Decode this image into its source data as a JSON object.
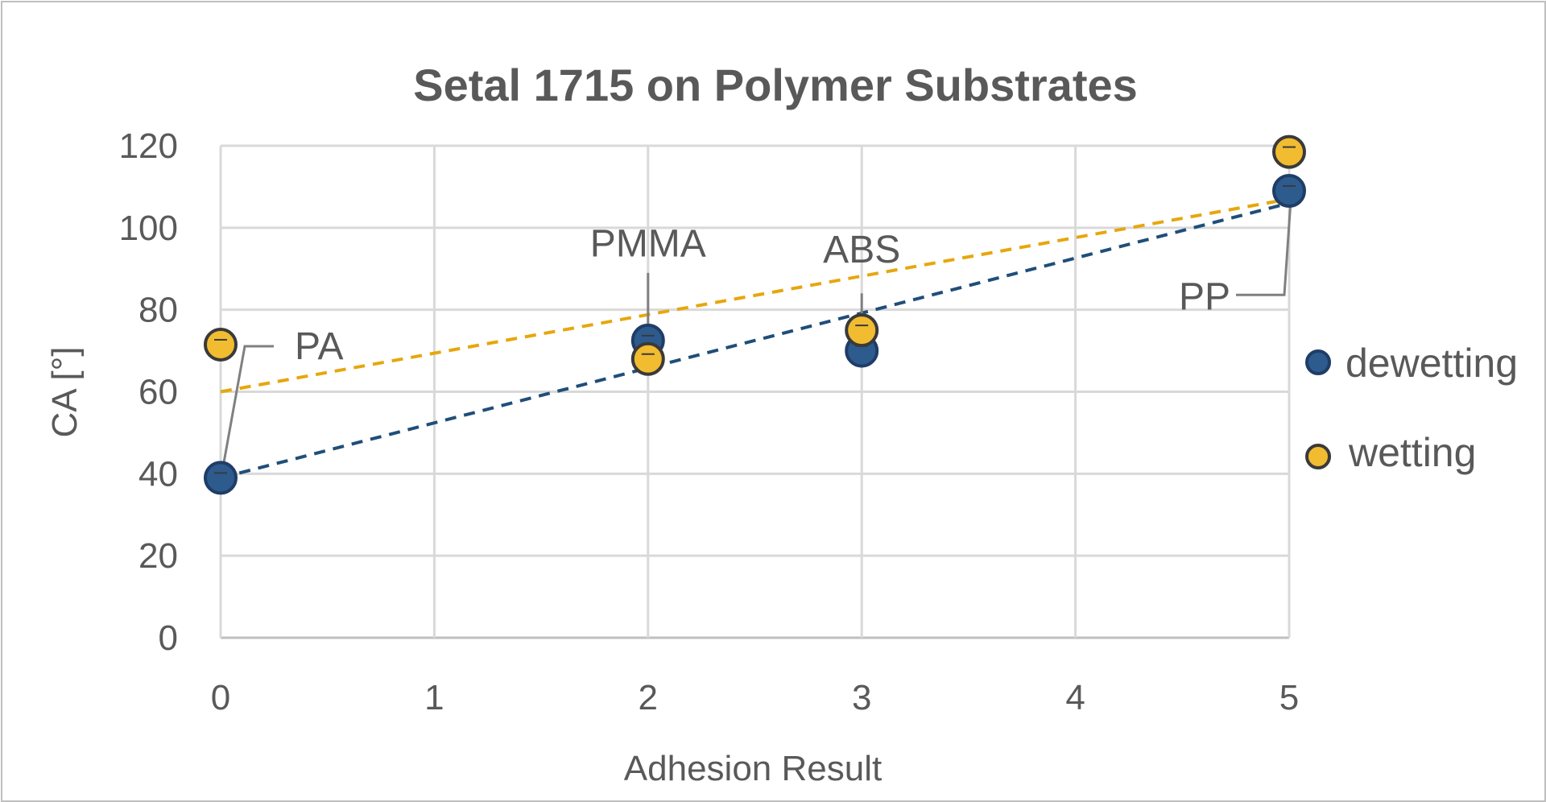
{
  "chart_data": {
    "type": "scatter",
    "title": "Setal 1715 on Polymer Substrates",
    "xlabel": "Adhesion Result",
    "ylabel": "CA [°]",
    "xlim": [
      0,
      5
    ],
    "ylim": [
      0,
      120
    ],
    "xticks": [
      "0",
      "1",
      "2",
      "3",
      "4",
      "5"
    ],
    "yticks": [
      "0",
      "20",
      "40",
      "60",
      "80",
      "100",
      "120"
    ],
    "grid": true,
    "legend_position": "right",
    "series": [
      {
        "name": "dewetting",
        "color": "#2e5b8e",
        "edge_color": "#1f3d66",
        "points": [
          {
            "x": 0,
            "y": 39
          },
          {
            "x": 2,
            "y": 72.5
          },
          {
            "x": 3,
            "y": 70
          },
          {
            "x": 5,
            "y": 109
          }
        ],
        "trendline": {
          "type": "linear",
          "style": "dashed",
          "color": "#1f4e79",
          "y_at_xmin": 39,
          "y_at_xmax": 106
        }
      },
      {
        "name": "wetting",
        "color": "#f2bc30",
        "edge_color": "#3a3a3a",
        "points": [
          {
            "x": 0,
            "y": 71.5
          },
          {
            "x": 2,
            "y": 68
          },
          {
            "x": 3,
            "y": 75
          },
          {
            "x": 5,
            "y": 118.5
          }
        ],
        "trendline": {
          "type": "linear",
          "style": "dashed",
          "color": "#e6a70e",
          "y_at_xmin": 60,
          "y_at_xmax": 107
        }
      }
    ],
    "annotations": [
      {
        "text": "PA"
      },
      {
        "text": "PMMA"
      },
      {
        "text": "ABS"
      },
      {
        "text": "PP"
      }
    ]
  }
}
